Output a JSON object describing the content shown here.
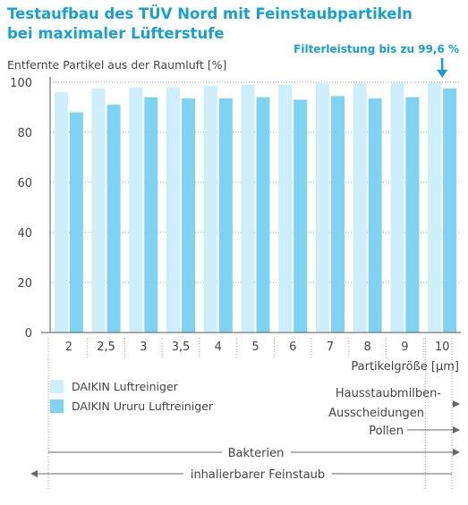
{
  "title_line1": "Testaufbau des TÜV Nord mit Feinstaubpartikeln",
  "title_line2": "bei maximaler Lüfterstufe",
  "callout": "Filterleistung bis zu 99,6 %",
  "colors": {
    "series1": "#cdeefb",
    "series2": "#7ed3f2",
    "accent": "#16a0d4",
    "text": "#444444",
    "grid": "#9aa7ad"
  },
  "chart_data": {
    "type": "bar",
    "ylabel": "Entfernte Partikel aus der Raumluft [%]",
    "xlabel": "Partikelgröße [µm]",
    "ylim": [
      0,
      100
    ],
    "yticks": [
      "0",
      "20",
      "40",
      "60",
      "80",
      "100"
    ],
    "categories": [
      "2",
      "2,5",
      "3",
      "3,5",
      "4",
      "5",
      "6",
      "7",
      "8",
      "9",
      "10"
    ],
    "grid": true,
    "series": [
      {
        "name": "DAIKIN Luftreiniger",
        "values": [
          96,
          97.5,
          98,
          98,
          98.5,
          99,
          99,
          99.5,
          99.6,
          99.6,
          99.6
        ]
      },
      {
        "name": "DAIKIN Ururu Luftreiniger",
        "values": [
          88,
          91,
          94,
          93.5,
          93.5,
          94,
          93,
          94.5,
          93.5,
          94,
          97.5
        ]
      }
    ],
    "ranges": [
      {
        "label": "Hausstaubmilben-",
        "label2": "Ausscheidungen",
        "from": "10",
        "to": "beyond",
        "row": 0
      },
      {
        "label": "Pollen",
        "from": "10",
        "to": "beyond",
        "row": 1
      },
      {
        "label": "Bakterien",
        "from": "2",
        "to": "beyond",
        "row": 2
      },
      {
        "label": "inhalierbarer Feinstaub",
        "from": "below",
        "to": "10",
        "row": 3
      }
    ]
  }
}
